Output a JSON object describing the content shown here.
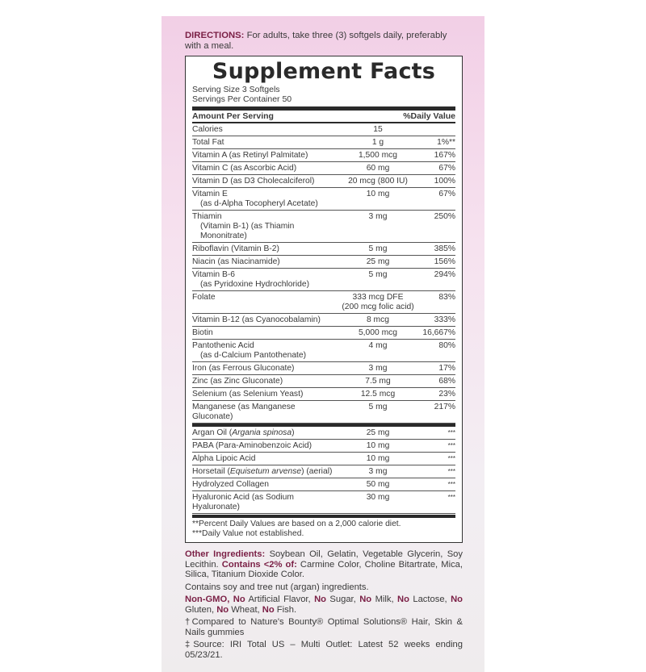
{
  "directions": {
    "label": "DIRECTIONS:",
    "text": " For adults, take three (3) softgels daily, preferably with a meal."
  },
  "facts": {
    "title": "Supplement Facts",
    "serving_size": "Serving Size 3 Softgels",
    "servings_per_container": "Servings Per Container 50",
    "header_amount": "Amount Per Serving",
    "header_dv": "%Daily Value",
    "rows": [
      {
        "name": "Calories",
        "amount": "15",
        "dv": ""
      },
      {
        "name": "Total Fat",
        "amount": "1 g",
        "dv": "1%**"
      },
      {
        "name": "Vitamin A (as Retinyl Palmitate)",
        "amount": "1,500 mcg",
        "dv": "167%"
      },
      {
        "name": "Vitamin C (as Ascorbic Acid)",
        "amount": "60 mg",
        "dv": "67%"
      },
      {
        "name": "Vitamin D (as D3 Cholecalciferol)",
        "amount": "20 mcg (800 IU)",
        "dv": "100%"
      },
      {
        "name": "Vitamin E",
        "sub": "(as d-Alpha Tocopheryl Acetate)",
        "amount": "10 mg",
        "dv": "67%"
      },
      {
        "name": "Thiamin",
        "sub": "(Vitamin B-1) (as Thiamin Mononitrate)",
        "amount": "3 mg",
        "dv": "250%"
      },
      {
        "name": "Riboflavin (Vitamin B-2)",
        "amount": "5 mg",
        "dv": "385%"
      },
      {
        "name": "Niacin (as Niacinamide)",
        "amount": "25 mg",
        "dv": "156%"
      },
      {
        "name": "Vitamin B-6",
        "sub": "(as Pyridoxine Hydrochloride)",
        "amount": "5 mg",
        "dv": "294%"
      },
      {
        "name": "Folate",
        "amount": "333 mcg DFE",
        "amount2": "(200 mcg folic acid)",
        "dv": "83%"
      },
      {
        "name": "Vitamin B-12 (as Cyanocobalamin)",
        "amount": "8 mcg",
        "dv": "333%"
      },
      {
        "name": "Biotin",
        "amount": "5,000 mcg",
        "dv": "16,667%"
      },
      {
        "name": "Pantothenic Acid",
        "sub": "(as d-Calcium Pantothenate)",
        "amount": "4 mg",
        "dv": "80%"
      },
      {
        "name": "Iron (as Ferrous Gluconate)",
        "amount": "3 mg",
        "dv": "17%"
      },
      {
        "name": "Zinc (as Zinc Gluconate)",
        "amount": "7.5 mg",
        "dv": "68%"
      },
      {
        "name": "Selenium (as Selenium Yeast)",
        "amount": "12.5 mcg",
        "dv": "23%"
      },
      {
        "name": "Manganese (as Manganese Gluconate)",
        "amount": "5 mg",
        "dv": "217%"
      },
      {
        "name": "Argan Oil (",
        "italic": "Argania spinosa",
        "post": ")",
        "amount": "25 mg",
        "dv": "***",
        "sep": true
      },
      {
        "name": "PABA (Para-Aminobenzoic Acid)",
        "amount": "10 mg",
        "dv": "***"
      },
      {
        "name": "Alpha Lipoic Acid",
        "amount": "10 mg",
        "dv": "***"
      },
      {
        "name": "Horsetail (",
        "italic": "Equisetum arvense",
        "post": ") (aerial)",
        "amount": "3 mg",
        "dv": "***"
      },
      {
        "name": "Hydrolyzed Collagen",
        "amount": "50 mg",
        "dv": "***"
      },
      {
        "name": "Hyaluronic Acid (as Sodium Hyaluronate)",
        "amount": "30 mg",
        "dv": "***"
      }
    ],
    "footnote1": "**Percent Daily Values are based on a 2,000 calorie diet.",
    "footnote2": "***Daily Value not established."
  },
  "other": {
    "label": "Other Ingredients:",
    "text1": " Soybean Oil, Gelatin, Vegetable Glycerin, Soy Lecithin. ",
    "label2": "Contains <2% of:",
    "text2": " Carmine Color, Choline Bitartrate, Mica, Silica, Titanium Dioxide Color.",
    "allergen": "Contains soy and tree nut (argan) ingredients.",
    "nongmo": [
      "Non-GMO, No",
      " Artificial Flavor, ",
      "No",
      " Sugar, ",
      "No",
      " Milk, ",
      "No",
      " Lactose, ",
      "No",
      " Gluten, ",
      "No",
      " Wheat, ",
      "No",
      " Fish."
    ],
    "compared": "†Compared to Nature's Bounty® Optimal Solutions® Hair, Skin & Nails gummies",
    "source": "‡Source: IRI Total US – Multi Outlet: Latest 52 weeks ending 05/23/21."
  },
  "colors": {
    "accent": "#7a1f45",
    "panel_top": "#f2cfe6"
  }
}
